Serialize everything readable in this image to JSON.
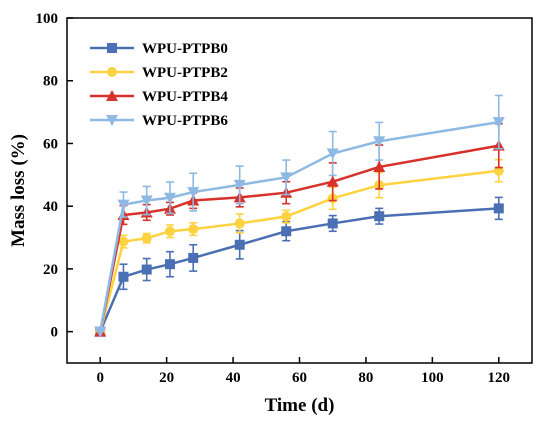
{
  "chart_data": {
    "type": "line",
    "title": "",
    "xlabel": "Time (d)",
    "ylabel": "Mass loss (%)",
    "xlim": [
      -10,
      130
    ],
    "ylim": [
      -10,
      100
    ],
    "xticks": [
      0,
      20,
      40,
      60,
      80,
      100,
      120
    ],
    "yticks": [
      0,
      20,
      40,
      60,
      80,
      100
    ],
    "legend_position": "top-left",
    "grid": false,
    "x": [
      0,
      7,
      14,
      21,
      28,
      42,
      56,
      70,
      84,
      120
    ],
    "series": [
      {
        "name": "WPU-PTPB0",
        "color": "#4a6fb3",
        "marker": "square",
        "values": [
          0,
          17.5,
          19.8,
          21.5,
          23.5,
          27.7,
          32.0,
          34.5,
          36.8,
          39.3
        ],
        "errors": [
          0,
          4.0,
          3.5,
          4.0,
          4.2,
          4.5,
          3.0,
          2.5,
          2.5,
          3.5
        ]
      },
      {
        "name": "WPU-PTPB2",
        "color": "#ffd23f",
        "marker": "circle",
        "values": [
          0,
          28.7,
          29.8,
          32.0,
          32.7,
          34.5,
          36.7,
          42.5,
          46.7,
          51.3
        ],
        "errors": [
          0,
          2.0,
          1.5,
          2.0,
          2.0,
          3.0,
          2.0,
          3.5,
          4.0,
          3.5
        ]
      },
      {
        "name": "WPU-PTPB4",
        "color": "#d6312a",
        "marker": "triangle-up",
        "values": [
          0,
          37.2,
          38.0,
          39.2,
          41.8,
          42.8,
          44.3,
          47.8,
          52.5,
          59.3
        ],
        "errors": [
          0,
          3.0,
          2.5,
          2.0,
          2.5,
          3.0,
          3.5,
          6.0,
          7.0,
          7.0
        ]
      },
      {
        "name": "WPU-PTPB6",
        "color": "#8db9e2",
        "marker": "triangle-down",
        "values": [
          0,
          40.5,
          41.8,
          42.7,
          44.5,
          46.8,
          49.2,
          56.8,
          60.7,
          66.8
        ],
        "errors": [
          0,
          4.0,
          4.5,
          5.0,
          6.0,
          6.0,
          5.5,
          7.0,
          6.0,
          8.5
        ]
      }
    ]
  }
}
